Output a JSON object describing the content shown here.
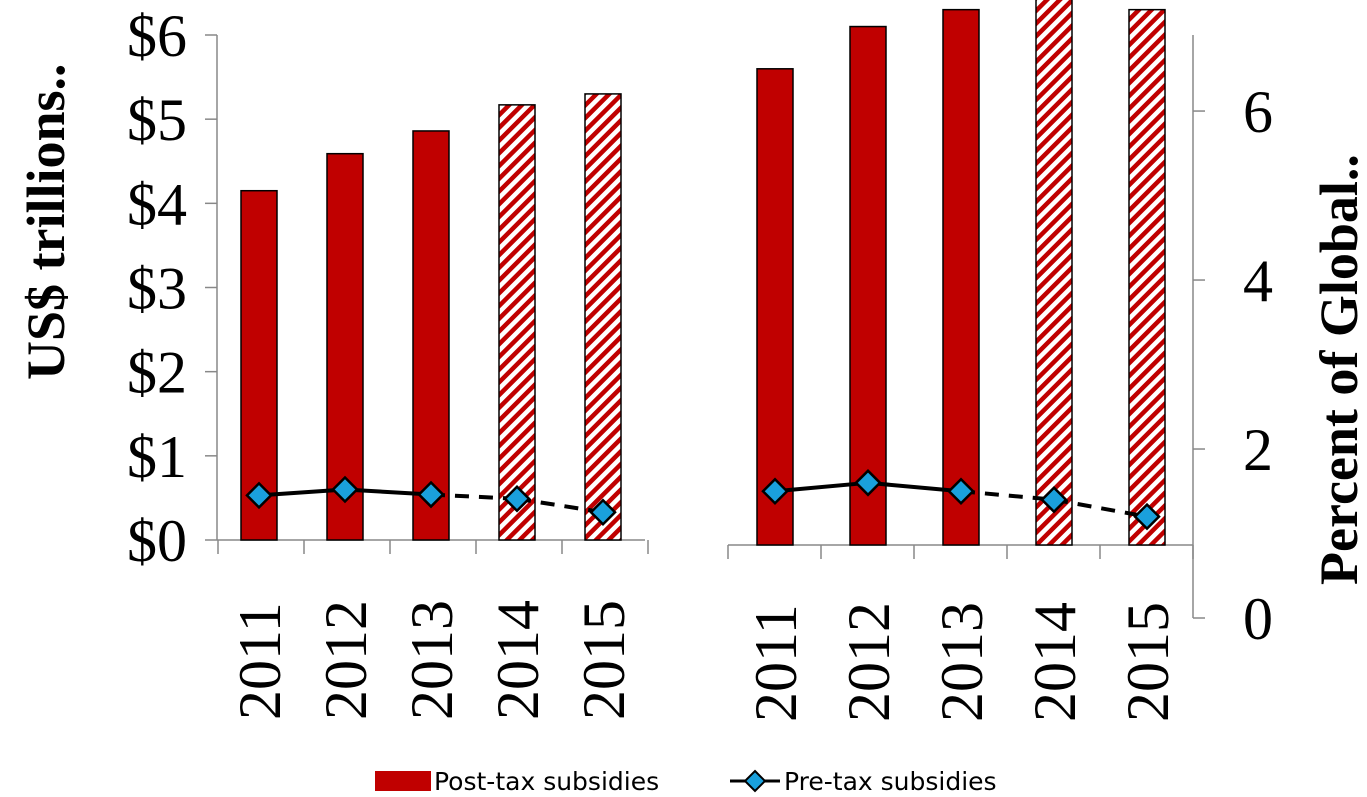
{
  "chart_data": [
    {
      "type": "bar",
      "panel": "left",
      "categories": [
        "2011",
        "2012",
        "2013",
        "2014",
        "2015"
      ],
      "series": [
        {
          "name": "Post-tax subsidies",
          "type": "bar",
          "values": [
            4.15,
            4.59,
            4.86,
            5.17,
            5.3
          ],
          "projected": [
            false,
            false,
            false,
            true,
            true
          ]
        },
        {
          "name": "Pre-tax subsidies",
          "type": "line",
          "values": [
            0.53,
            0.6,
            0.54,
            0.49,
            0.33
          ],
          "projected": [
            false,
            false,
            false,
            true,
            true
          ]
        }
      ],
      "ylabel": "US$ trillions..",
      "ylim": [
        0,
        6
      ],
      "yticks": [
        "$0",
        "$1",
        "$2",
        "$3",
        "$4",
        "$5",
        "$6"
      ]
    },
    {
      "type": "bar",
      "panel": "right",
      "categories": [
        "2011",
        "2012",
        "2013",
        "2014",
        "2015"
      ],
      "series": [
        {
          "name": "Post-tax subsidies",
          "type": "bar",
          "values": [
            6.5,
            7.0,
            7.2,
            7.4,
            7.2
          ],
          "projected": [
            false,
            false,
            false,
            true,
            true
          ]
        },
        {
          "name": "Pre-tax subsidies",
          "type": "line",
          "values": [
            1.5,
            1.6,
            1.5,
            1.4,
            1.2
          ],
          "projected": [
            false,
            false,
            false,
            true,
            true
          ]
        }
      ],
      "ylabel": "Percent of Global..",
      "ylim": [
        0,
        6.9
      ],
      "yticks": [
        "0",
        "2",
        "4",
        "6"
      ]
    }
  ],
  "legend": {
    "items": [
      "Post-tax subsidies",
      "Pre-tax subsidies"
    ],
    "position": "bottom"
  },
  "colors": {
    "bar": "#c00000",
    "bar_border": "#000000",
    "line": "#000000",
    "marker": "#1aa0dc"
  }
}
